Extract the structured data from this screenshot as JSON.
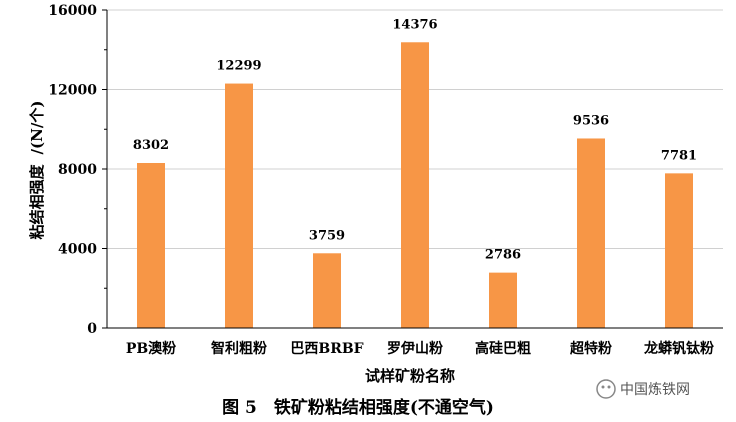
{
  "chart_data": {
    "type": "bar",
    "categories": [
      "PB澳粉",
      "智利粗粉",
      "巴西BRBF",
      "罗伊山粉",
      "高硅巴粗",
      "超特粉",
      "龙蟒钒钛粉"
    ],
    "values": [
      8302,
      12299,
      3759,
      14376,
      2786,
      9536,
      7781
    ],
    "xlabel": "试样矿粉名称",
    "ylabel_text": "粘结相强度",
    "ylabel_unit": "/(N/个)",
    "ylim": [
      0,
      16000
    ],
    "yticks": [
      0,
      4000,
      8000,
      12000,
      16000
    ],
    "grid": true,
    "bar_color": "#F79646",
    "caption": "图 5　铁矿粉粘结相强度(不通空气)"
  },
  "watermark": "中国炼铁网"
}
